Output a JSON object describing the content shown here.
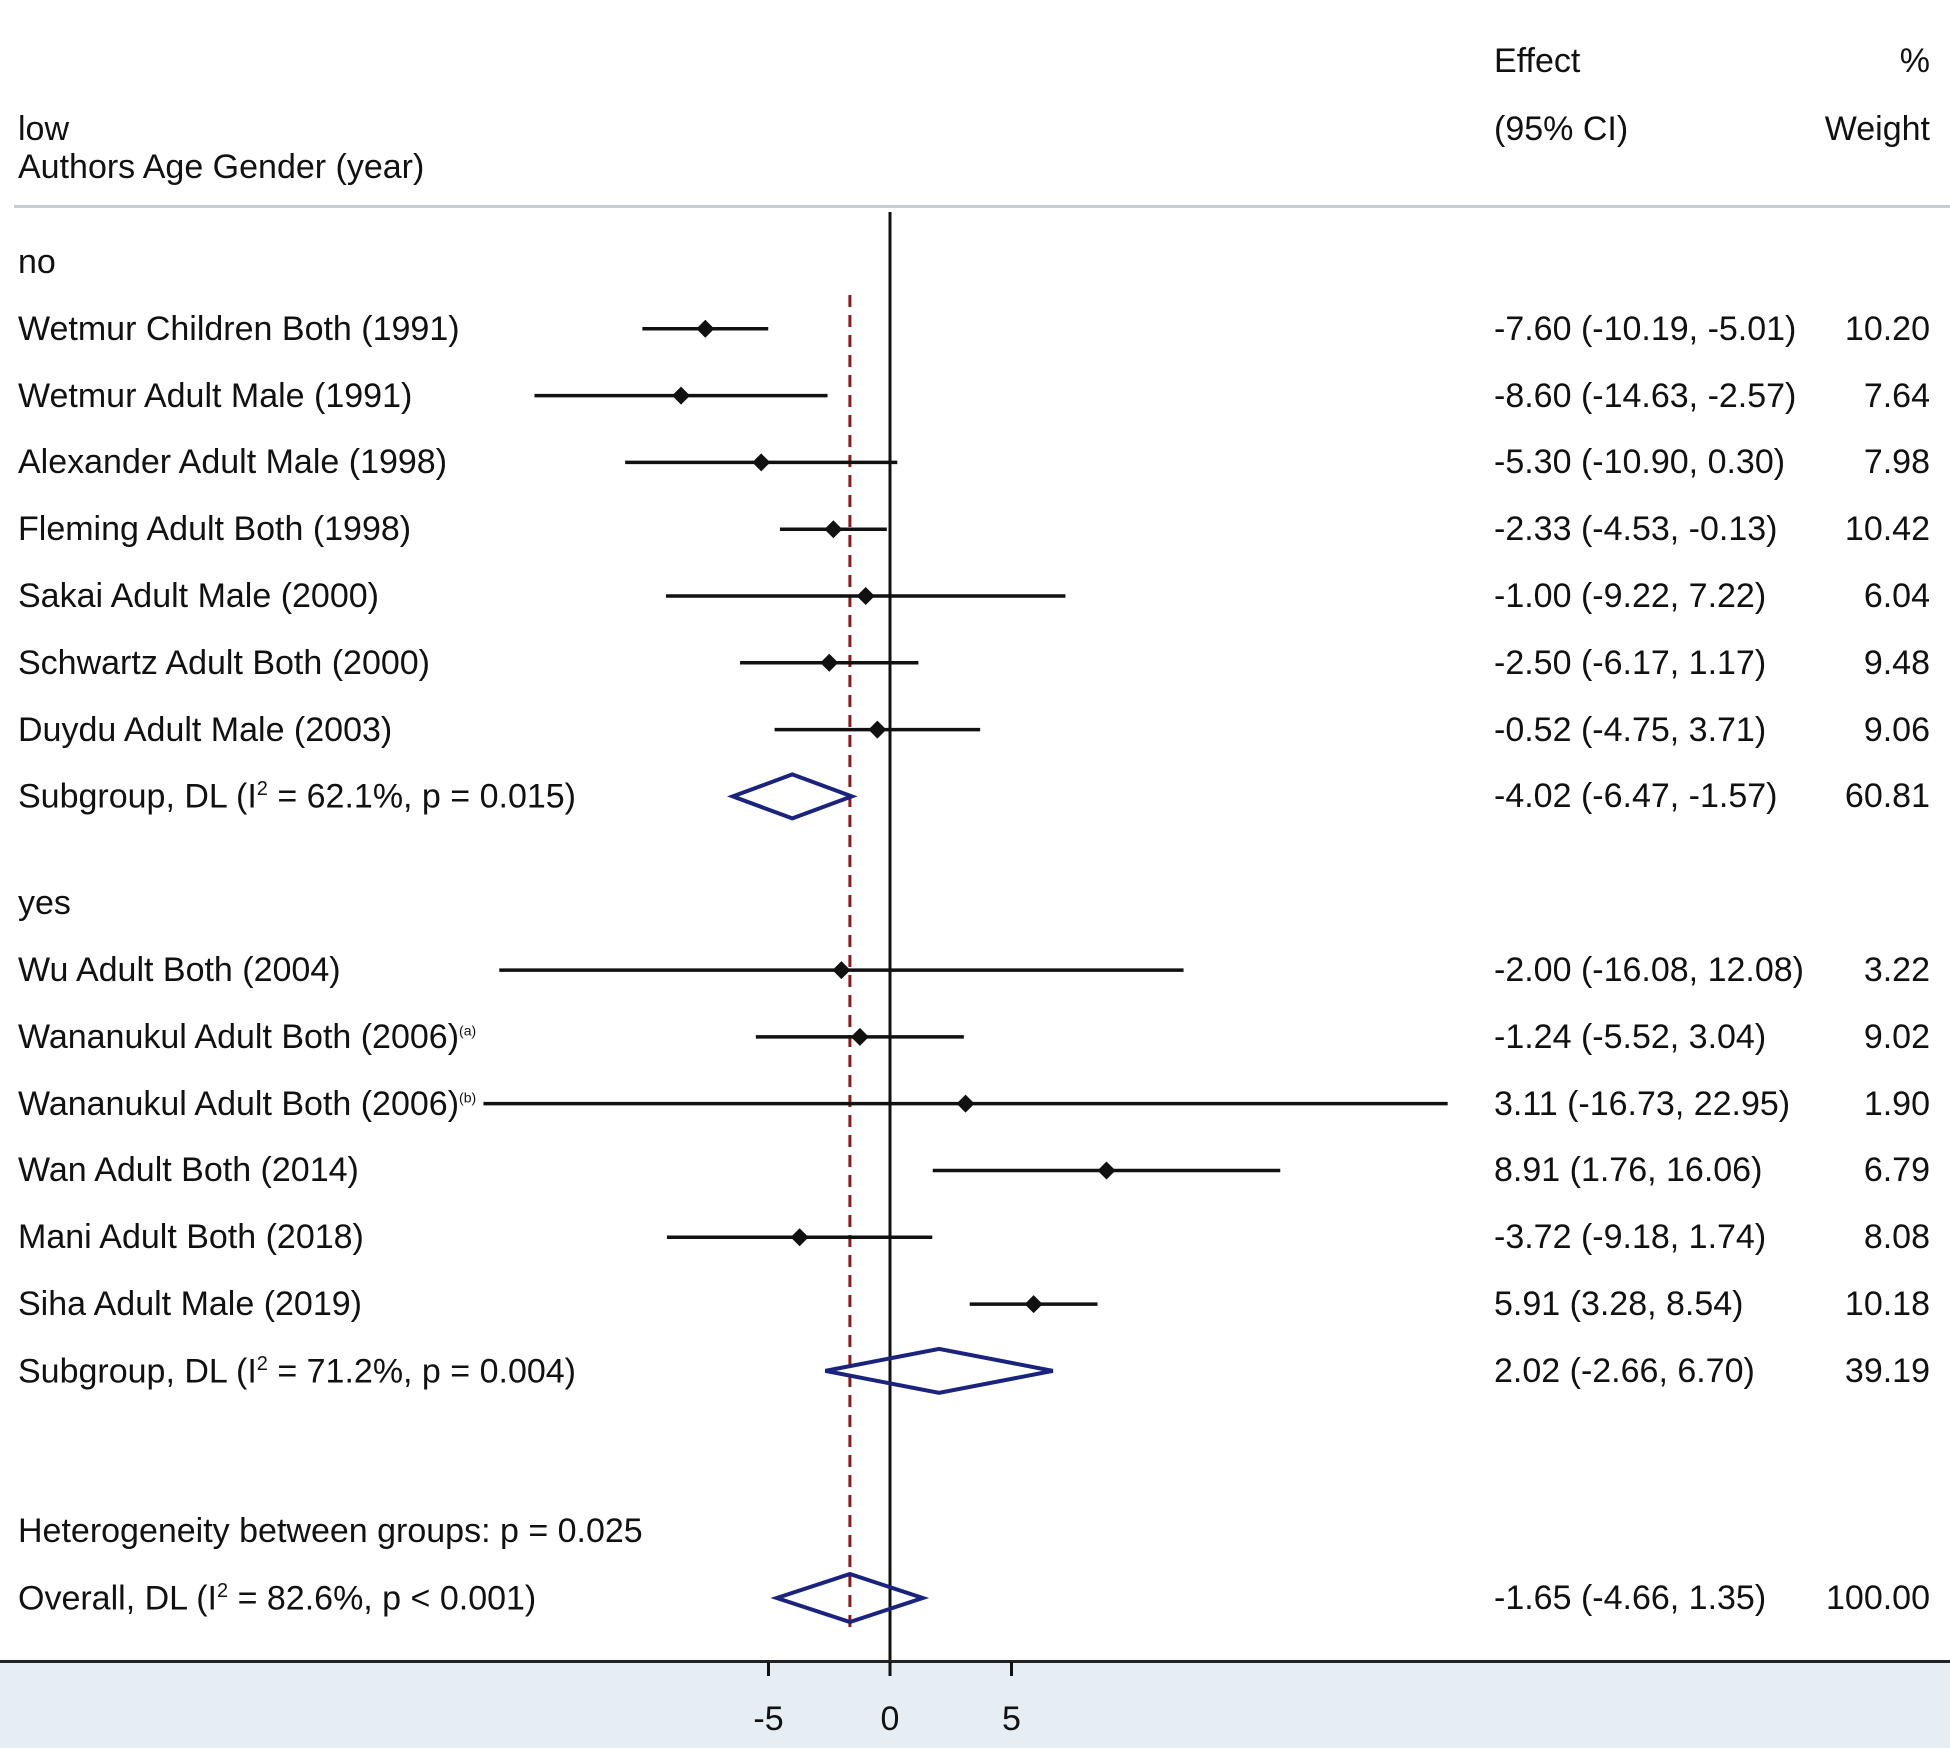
{
  "header": {
    "group_var": "low",
    "study_label": "Authors Age Gender (year)",
    "effect_line1": "Effect",
    "effect_line2": "(95% CI)",
    "weight_line1": "%",
    "weight_line2": "Weight"
  },
  "chart_data": {
    "type": "forest",
    "xlabel": "",
    "xticks": [
      -5,
      0,
      5
    ],
    "null_line": 0,
    "overall_line": -1.65,
    "groups": [
      {
        "name": "no",
        "studies": [
          {
            "label": "Wetmur Children Both (1991)",
            "effect": -7.6,
            "lo": -10.19,
            "hi": -5.01,
            "ci_text": "-7.60 (-10.19, -5.01)",
            "weight": "10.20"
          },
          {
            "label": "Wetmur Adult Male (1991)",
            "effect": -8.6,
            "lo": -14.63,
            "hi": -2.57,
            "ci_text": "-8.60 (-14.63, -2.57)",
            "weight": "7.64"
          },
          {
            "label": "Alexander Adult Male (1998)",
            "effect": -5.3,
            "lo": -10.9,
            "hi": 0.3,
            "ci_text": "-5.30 (-10.90, 0.30)",
            "weight": "7.98"
          },
          {
            "label": "Fleming Adult Both (1998)",
            "effect": -2.33,
            "lo": -4.53,
            "hi": -0.13,
            "ci_text": "-2.33 (-4.53, -0.13)",
            "weight": "10.42"
          },
          {
            "label": "Sakai Adult Male (2000)",
            "effect": -1.0,
            "lo": -9.22,
            "hi": 7.22,
            "ci_text": "-1.00 (-9.22, 7.22)",
            "weight": "6.04"
          },
          {
            "label": "Schwartz Adult Both (2000)",
            "effect": -2.5,
            "lo": -6.17,
            "hi": 1.17,
            "ci_text": "-2.50 (-6.17, 1.17)",
            "weight": "9.48"
          },
          {
            "label": "Duydu Adult Male (2003)",
            "effect": -0.52,
            "lo": -4.75,
            "hi": 3.71,
            "ci_text": "-0.52 (-4.75, 3.71)",
            "weight": "9.06"
          }
        ],
        "subgroup": {
          "label_pre": "Subgroup, DL (I",
          "label_sup": "2",
          "label_post": " = 62.1%, p = 0.015)",
          "effect": -4.02,
          "lo": -6.47,
          "hi": -1.57,
          "ci_text": "-4.02 (-6.47, -1.57)",
          "weight": "60.81"
        }
      },
      {
        "name": "yes",
        "studies": [
          {
            "label": "Wu Adult Both (2004)",
            "effect": -2.0,
            "lo": -16.08,
            "hi": 12.08,
            "ci_text": "-2.00 (-16.08, 12.08)",
            "weight": "3.22"
          },
          {
            "label": "Wananukul Adult Both (2006)",
            "label_sup": "(a)",
            "effect": -1.24,
            "lo": -5.52,
            "hi": 3.04,
            "ci_text": "-1.24 (-5.52, 3.04)",
            "weight": "9.02"
          },
          {
            "label": "Wananukul Adult Both (2006)",
            "label_sup": "(b)",
            "effect": 3.11,
            "lo": -16.73,
            "hi": 22.95,
            "ci_text": "3.11 (-16.73, 22.95)",
            "weight": "1.90"
          },
          {
            "label": "Wan Adult Both (2014)",
            "effect": 8.91,
            "lo": 1.76,
            "hi": 16.06,
            "ci_text": "8.91 (1.76, 16.06)",
            "weight": "6.79"
          },
          {
            "label": "Mani Adult Both (2018)",
            "effect": -3.72,
            "lo": -9.18,
            "hi": 1.74,
            "ci_text": "-3.72 (-9.18, 1.74)",
            "weight": "8.08"
          },
          {
            "label": "Siha Adult Male (2019)",
            "effect": 5.91,
            "lo": 3.28,
            "hi": 8.54,
            "ci_text": "5.91 (3.28, 8.54)",
            "weight": "10.18"
          }
        ],
        "subgroup": {
          "label_pre": "Subgroup, DL (I",
          "label_sup": "2",
          "label_post": " = 71.2%, p = 0.004)",
          "effect": 2.02,
          "lo": -2.66,
          "hi": 6.7,
          "ci_text": "2.02 (-2.66, 6.70)",
          "weight": "39.19"
        }
      }
    ],
    "heterogeneity": "Heterogeneity between groups: p = 0.025",
    "overall": {
      "label_pre": "Overall, DL (I",
      "label_sup": "2",
      "label_post": " = 82.6%, p < 0.001)",
      "effect": -1.65,
      "lo": -4.66,
      "hi": 1.35,
      "ci_text": "-1.65 (-4.66, 1.35)",
      "weight": "100.00"
    }
  },
  "colors": {
    "diamond": "#1a237e",
    "dash": "#8b1a1a",
    "line": "#111111"
  }
}
